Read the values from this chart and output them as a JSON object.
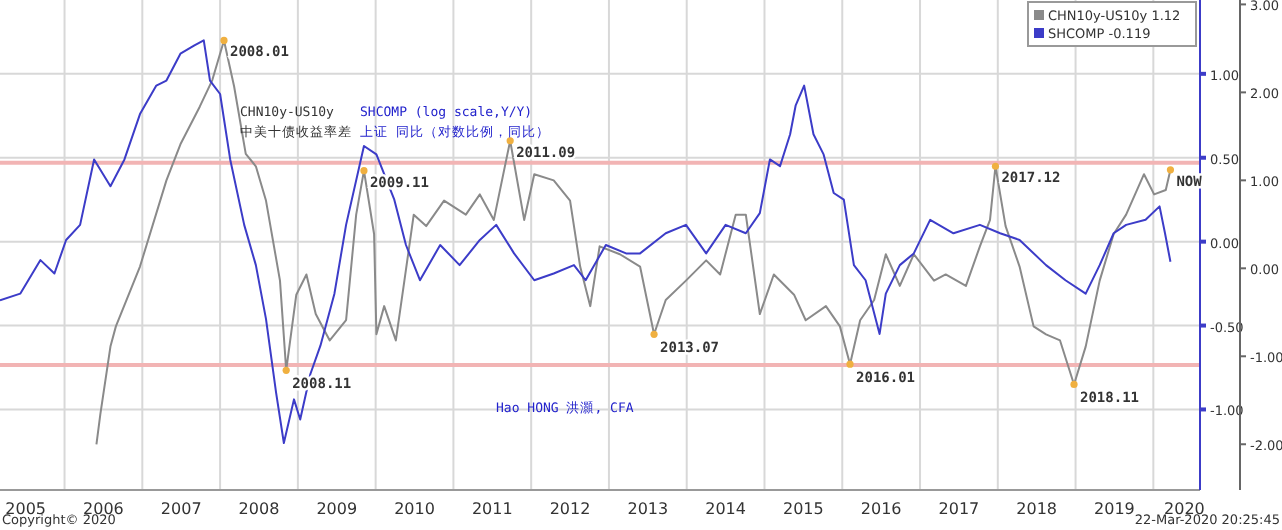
{
  "chart_data": {
    "type": "line",
    "xlim": [
      2005.17,
      2020.6
    ],
    "xticks": [
      {
        "value": 2005.5,
        "label": "2005"
      },
      {
        "value": 2006,
        "label": null
      },
      {
        "value": 2006.5,
        "label": "2006"
      },
      {
        "value": 2007,
        "label": null
      },
      {
        "value": 2007.5,
        "label": "2007"
      },
      {
        "value": 2008,
        "label": null
      },
      {
        "value": 2008.5,
        "label": "2008"
      },
      {
        "value": 2009,
        "label": null
      },
      {
        "value": 2009.5,
        "label": "2009"
      },
      {
        "value": 2010,
        "label": null
      },
      {
        "value": 2010.5,
        "label": "2010"
      },
      {
        "value": 2011,
        "label": null
      },
      {
        "value": 2011.5,
        "label": "2011"
      },
      {
        "value": 2012,
        "label": null
      },
      {
        "value": 2012.5,
        "label": "2012"
      },
      {
        "value": 2013,
        "label": null
      },
      {
        "value": 2013.5,
        "label": "2013"
      },
      {
        "value": 2014,
        "label": null
      },
      {
        "value": 2014.5,
        "label": "2014"
      },
      {
        "value": 2015,
        "label": null
      },
      {
        "value": 2015.5,
        "label": "2015"
      },
      {
        "value": 2016,
        "label": null
      },
      {
        "value": 2016.5,
        "label": "2016"
      },
      {
        "value": 2017,
        "label": null
      },
      {
        "value": 2017.5,
        "label": "2017"
      },
      {
        "value": 2018,
        "label": null
      },
      {
        "value": 2018.5,
        "label": "2018"
      },
      {
        "value": 2019,
        "label": null
      },
      {
        "value": 2019.5,
        "label": "2019"
      },
      {
        "value": 2020,
        "label": null
      },
      {
        "value": 2020.4,
        "label": "2020"
      }
    ],
    "ylim": [
      -2.52,
      3.05
    ],
    "yticks": [
      {
        "value": 3,
        "label": "3.00"
      },
      {
        "value": 2,
        "label": "2.00"
      },
      {
        "value": 1,
        "label": "1.00"
      },
      {
        "value": 0,
        "label": "0.00"
      },
      {
        "value": -1,
        "label": "-1.00"
      },
      {
        "value": -2,
        "label": "-2.00"
      }
    ],
    "y2lim": [
      -1.48,
      1.44
    ],
    "y2ticks": [
      {
        "value": 1,
        "label": "1.00"
      },
      {
        "value": 0.5,
        "label": "0.50"
      },
      {
        "value": 0,
        "label": "0.00"
      },
      {
        "value": -0.5,
        "label": "-0.50"
      },
      {
        "value": -1,
        "label": "-1.00"
      }
    ],
    "grid": true,
    "legend": "top right",
    "series": [
      {
        "name": "CHN10y-US10y 1.12",
        "color": "#8a8a8a",
        "axis": "y",
        "x": [
          2006.41,
          2006.46,
          2006.59,
          2006.66,
          2006.97,
          2007.31,
          2007.49,
          2007.74,
          2007.9,
          2008.05,
          2008.18,
          2008.33,
          2008.46,
          2008.59,
          2008.77,
          2008.85,
          2008.98,
          2009.11,
          2009.23,
          2009.41,
          2009.62,
          2009.75,
          2009.85,
          2009.98,
          2010.01,
          2010.11,
          2010.26,
          2010.37,
          2010.49,
          2010.65,
          2010.88,
          2011.16,
          2011.34,
          2011.52,
          2011.73,
          2011.91,
          2012.04,
          2012.29,
          2012.5,
          2012.63,
          2012.76,
          2012.88,
          2013.14,
          2013.4,
          2013.58,
          2013.73,
          2013.99,
          2014.25,
          2014.43,
          2014.63,
          2014.76,
          2014.94,
          2015.12,
          2015.38,
          2015.53,
          2015.79,
          2015.97,
          2016.1,
          2016.23,
          2016.41,
          2016.56,
          2016.74,
          2016.92,
          2017.18,
          2017.33,
          2017.59,
          2017.77,
          2017.9,
          2017.97,
          2018.1,
          2018.28,
          2018.46,
          2018.62,
          2018.8,
          2018.98,
          2019.13,
          2019.31,
          2019.49,
          2019.65,
          2019.88,
          2020.01,
          2020.16,
          2020.22
        ],
        "values": [
          -2.0,
          -1.66,
          -0.89,
          -0.66,
          0.02,
          1.0,
          1.41,
          1.84,
          2.14,
          2.59,
          2.07,
          1.3,
          1.16,
          0.77,
          -0.14,
          -1.16,
          -0.3,
          -0.07,
          -0.52,
          -0.82,
          -0.59,
          0.61,
          1.11,
          0.39,
          -0.75,
          -0.43,
          -0.82,
          -0.14,
          0.61,
          0.48,
          0.77,
          0.61,
          0.84,
          0.55,
          1.45,
          0.55,
          1.07,
          1.0,
          0.77,
          0.02,
          -0.43,
          0.25,
          0.16,
          0.02,
          -0.75,
          -0.36,
          -0.14,
          0.09,
          -0.07,
          0.61,
          0.61,
          -0.52,
          -0.07,
          -0.3,
          -0.59,
          -0.43,
          -0.66,
          -1.09,
          -0.59,
          -0.36,
          0.16,
          -0.2,
          0.16,
          -0.14,
          -0.07,
          -0.2,
          0.25,
          0.55,
          1.16,
          0.48,
          0.02,
          -0.66,
          -0.75,
          -0.82,
          -1.32,
          -0.89,
          -0.14,
          0.39,
          0.61,
          1.07,
          0.84,
          0.89,
          1.12
        ]
      },
      {
        "name": "SHCOMP -0.119",
        "color": "#3c3cc8",
        "axis": "y2",
        "x": [
          2005.17,
          2005.43,
          2005.69,
          2005.87,
          2006.02,
          2006.2,
          2006.38,
          2006.59,
          2006.77,
          2006.97,
          2007.18,
          2007.31,
          2007.49,
          2007.67,
          2007.79,
          2007.87,
          2008.0,
          2008.13,
          2008.31,
          2008.46,
          2008.59,
          2008.72,
          2008.82,
          2008.95,
          2009.03,
          2009.16,
          2009.29,
          2009.47,
          2009.62,
          2009.85,
          2010.01,
          2010.24,
          2010.39,
          2010.57,
          2010.83,
          2011.08,
          2011.34,
          2011.55,
          2011.78,
          2012.04,
          2012.29,
          2012.55,
          2012.7,
          2012.96,
          2013.22,
          2013.4,
          2013.73,
          2013.99,
          2014.25,
          2014.5,
          2014.76,
          2014.94,
          2015.07,
          2015.2,
          2015.33,
          2015.4,
          2015.51,
          2015.63,
          2015.76,
          2015.89,
          2016.02,
          2016.15,
          2016.3,
          2016.48,
          2016.56,
          2016.74,
          2016.92,
          2017.13,
          2017.43,
          2017.77,
          2018.03,
          2018.28,
          2018.62,
          2018.87,
          2019.13,
          2019.31,
          2019.49,
          2019.65,
          2019.9,
          2020.08,
          2020.15,
          2020.22
        ],
        "values": [
          -0.35,
          -0.31,
          -0.11,
          -0.19,
          0.01,
          0.1,
          0.49,
          0.33,
          0.49,
          0.76,
          0.93,
          0.96,
          1.12,
          1.17,
          1.2,
          0.96,
          0.88,
          0.49,
          0.1,
          -0.14,
          -0.46,
          -0.9,
          -1.2,
          -0.94,
          -1.06,
          -0.79,
          -0.62,
          -0.31,
          0.1,
          0.57,
          0.52,
          0.25,
          -0.02,
          -0.23,
          -0.02,
          -0.14,
          0.01,
          0.1,
          -0.07,
          -0.23,
          -0.19,
          -0.14,
          -0.23,
          -0.02,
          -0.07,
          -0.07,
          0.05,
          0.1,
          -0.07,
          0.1,
          0.05,
          0.17,
          0.49,
          0.45,
          0.64,
          0.81,
          0.93,
          0.64,
          0.52,
          0.29,
          0.25,
          -0.14,
          -0.23,
          -0.55,
          -0.31,
          -0.14,
          -0.07,
          0.13,
          0.05,
          0.1,
          0.05,
          0.01,
          -0.14,
          -0.23,
          -0.31,
          -0.14,
          0.05,
          0.1,
          0.13,
          0.21,
          0.05,
          -0.12
        ]
      }
    ],
    "ref_lines": [
      {
        "axis": "y",
        "value": 1.2,
        "color": "#f2b4b4"
      },
      {
        "axis": "y",
        "value": -1.1,
        "color": "#f2b4b4"
      }
    ],
    "annotations": [
      {
        "text": "2008.01",
        "x": 2008.05,
        "y": 2.59
      },
      {
        "text": "2008.11",
        "x": 2008.85,
        "y": -1.16
      },
      {
        "text": "2009.11",
        "x": 2009.85,
        "y": 1.11
      },
      {
        "text": "2011.09",
        "x": 2011.73,
        "y": 1.45
      },
      {
        "text": "2013.07",
        "x": 2013.58,
        "y": -0.75
      },
      {
        "text": "2016.01",
        "x": 2016.1,
        "y": -1.09
      },
      {
        "text": "2017.12",
        "x": 2017.97,
        "y": 1.16
      },
      {
        "text": "2018.11",
        "x": 2018.98,
        "y": -1.32
      },
      {
        "text": "NOW",
        "x": 2020.22,
        "y": 1.12
      },
      "CHN10y-US10y\n中美十债收益率差",
      "SHCOMP (log scale,Y/Y)\n上证 同比（对数比例，同比）",
      "Hao HONG 洪灝, CFA",
      "Copyright© 2020",
      "22-Mar-2020 20:25:45"
    ]
  }
}
